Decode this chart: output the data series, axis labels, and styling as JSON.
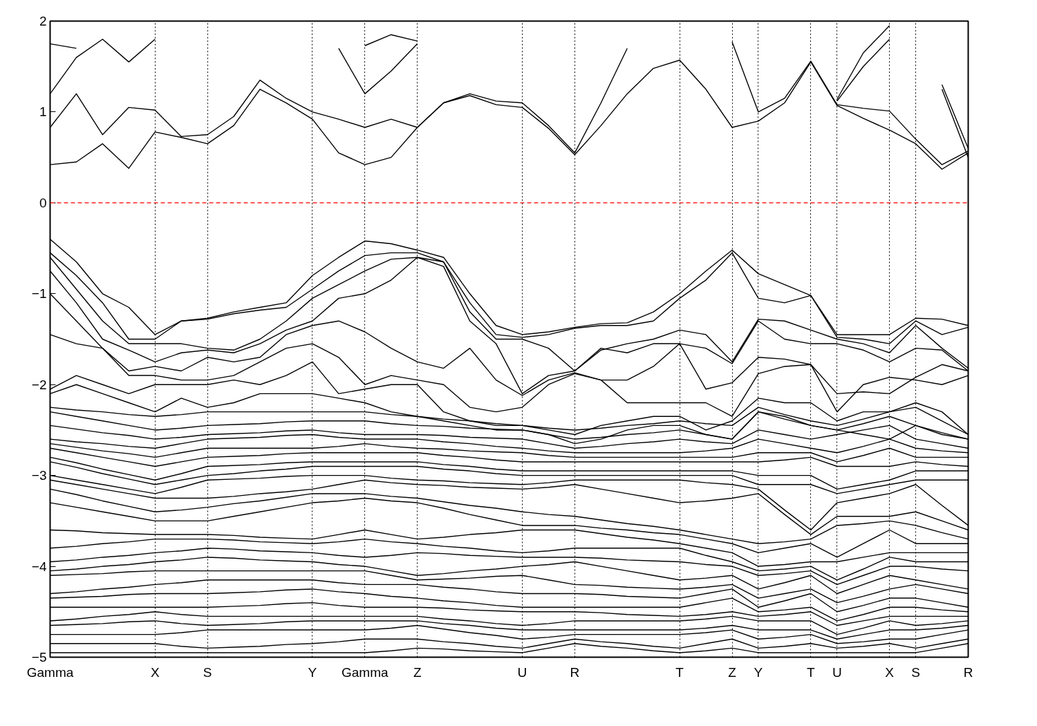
{
  "chart_data": {
    "type": "line",
    "categories": [
      "Gamma",
      null,
      null,
      null,
      "X",
      null,
      "S",
      null,
      null,
      null,
      "Y",
      null,
      "Gamma",
      null,
      "Z",
      null,
      null,
      null,
      "U",
      null,
      "R",
      null,
      null,
      null,
      "T",
      null,
      "Z",
      "Y",
      null,
      "T",
      "U",
      null,
      "X",
      "S",
      null,
      "R"
    ],
    "ylim": [
      -5,
      2
    ],
    "yticks": [
      -5,
      -4,
      -3,
      -2,
      -1,
      0,
      1,
      2
    ],
    "grid": "x",
    "ref_lines": [
      {
        "axis": "y",
        "value": 0,
        "label": null,
        "color": "#ff0000",
        "line_style": "dashed"
      }
    ],
    "series": [
      {
        "color": "#000000",
        "values": [
          0.42,
          0.45,
          0.65,
          0.38,
          0.78,
          0.72,
          0.65,
          0.85,
          1.25,
          1.1,
          0.92,
          0.55,
          0.42,
          0.5,
          0.83,
          1.1,
          1.18,
          1.08,
          1.05,
          0.82,
          0.53,
          0.85,
          1.2,
          1.48,
          1.57,
          1.25,
          0.83,
          0.9,
          1.1,
          1.55,
          1.07,
          0.93,
          0.8,
          0.65,
          0.37,
          0.55
        ]
      },
      {
        "color": "#000000",
        "values": [
          0.83,
          1.2,
          0.75,
          1.05,
          1.02,
          0.73,
          0.75,
          0.95,
          1.35,
          1.15,
          1.0,
          0.92,
          0.83,
          0.92,
          0.83,
          1.1,
          1.2,
          1.12,
          1.1,
          0.85,
          0.55,
          1.1,
          1.7,
          null,
          null,
          null,
          1.77,
          1.0,
          1.15,
          1.56,
          1.08,
          1.04,
          1.01,
          0.7,
          0.42,
          0.57
        ]
      },
      {
        "color": "#000000",
        "values": [
          1.2,
          1.6,
          1.8,
          1.55,
          1.8,
          null,
          null,
          null,
          null,
          null,
          null,
          1.7,
          1.2,
          1.45,
          1.75,
          null,
          null,
          null,
          null,
          null,
          null,
          null,
          null,
          null,
          null,
          null,
          null,
          null,
          null,
          null,
          1.12,
          1.5,
          1.8,
          null,
          1.25,
          0.5
        ]
      },
      {
        "color": "#000000",
        "values": [
          1.75,
          1.7,
          null,
          null,
          null,
          null,
          null,
          null,
          null,
          null,
          null,
          null,
          1.73,
          1.85,
          1.78,
          null,
          null,
          null,
          null,
          null,
          null,
          null,
          null,
          null,
          null,
          null,
          null,
          null,
          null,
          null,
          1.14,
          1.65,
          1.95,
          null,
          1.3,
          0.6
        ]
      },
      {
        "color": "#000000",
        "values": [
          -0.4,
          -0.65,
          -1.0,
          -1.15,
          -1.45,
          -1.3,
          -1.27,
          -1.2,
          -1.15,
          -1.1,
          -0.8,
          -0.6,
          -0.42,
          -0.45,
          -0.52,
          -0.6,
          -1.0,
          -1.35,
          -1.45,
          -1.42,
          -1.37,
          -1.33,
          -1.32,
          -1.2,
          -1.0,
          -0.75,
          -0.52,
          -0.78,
          -0.9,
          -1.02,
          -1.45,
          -1.45,
          -1.45,
          -1.27,
          -1.28,
          -1.35
        ]
      },
      {
        "color": "#000000",
        "values": [
          -0.55,
          -0.8,
          -1.1,
          -1.5,
          -1.5,
          -1.3,
          -1.28,
          -1.22,
          -1.18,
          -1.15,
          -0.95,
          -0.75,
          -0.58,
          -0.55,
          -0.55,
          -0.65,
          -1.1,
          -1.45,
          -1.48,
          -1.45,
          -1.38,
          -1.35,
          -1.35,
          -1.3,
          -1.05,
          -0.85,
          -0.55,
          -1.05,
          -1.1,
          -1.02,
          -1.48,
          -1.5,
          -1.55,
          -1.3,
          -1.45,
          -1.37
        ]
      },
      {
        "color": "#000000",
        "values": [
          -0.6,
          -0.95,
          -1.3,
          -1.55,
          -1.55,
          -1.55,
          -1.6,
          -1.62,
          -1.5,
          -1.3,
          -1.05,
          -0.9,
          -0.75,
          -0.62,
          -0.6,
          -0.65,
          -1.2,
          -1.5,
          -1.5,
          -1.6,
          -1.85,
          -1.62,
          -1.55,
          -1.5,
          -1.4,
          -1.45,
          -1.75,
          -1.28,
          -1.3,
          -1.4,
          -1.5,
          -1.55,
          -1.65,
          -1.35,
          -1.6,
          -1.82
        ]
      },
      {
        "color": "#000000",
        "values": [
          -0.75,
          -1.1,
          -1.5,
          -1.62,
          -1.75,
          -1.65,
          -1.62,
          -1.65,
          -1.55,
          -1.4,
          -1.3,
          -1.05,
          -1.0,
          -0.85,
          -0.6,
          -0.7,
          -1.3,
          -1.55,
          -2.1,
          -1.9,
          -1.85,
          -1.6,
          -1.65,
          -1.55,
          -1.55,
          -1.6,
          -1.77,
          -1.3,
          -1.5,
          -1.55,
          -1.55,
          -1.62,
          -1.75,
          -1.6,
          -1.62,
          -1.85
        ]
      },
      {
        "color": "#000000",
        "values": [
          -1.0,
          -1.3,
          -1.6,
          -1.85,
          -1.8,
          -1.85,
          -1.7,
          -1.75,
          -1.7,
          -1.45,
          -1.35,
          -1.3,
          -1.42,
          -1.6,
          -1.75,
          -1.82,
          -1.6,
          -1.95,
          -2.12,
          -1.95,
          -1.87,
          -1.95,
          -1.95,
          -1.8,
          -1.55,
          -2.05,
          -1.98,
          -1.7,
          -1.72,
          -1.78,
          -2.1,
          -2.08,
          -2.1,
          -1.92,
          -1.78,
          -1.85
        ]
      },
      {
        "color": "#000000",
        "values": [
          -1.45,
          -1.55,
          -1.6,
          -1.9,
          -1.9,
          -1.95,
          -1.95,
          -1.9,
          -1.75,
          -1.6,
          -1.55,
          -1.7,
          -2.0,
          -1.9,
          -1.95,
          -2.0,
          -2.25,
          -2.3,
          -2.25,
          -2.0,
          -1.88,
          -1.95,
          -2.2,
          -2.2,
          -2.2,
          -2.2,
          -2.35,
          -1.88,
          -1.8,
          -1.78,
          -2.3,
          -2.0,
          -1.92,
          -1.95,
          -2.0,
          -1.9
        ]
      },
      {
        "color": "#000000",
        "values": [
          -2.05,
          -1.9,
          -2.0,
          -2.1,
          -2.0,
          -2.0,
          -2.0,
          -1.95,
          -2.0,
          -1.9,
          -1.75,
          -2.1,
          -2.05,
          -2.0,
          -2.0,
          -2.3,
          -2.4,
          -2.45,
          -2.45,
          -2.5,
          -2.55,
          -2.45,
          -2.4,
          -2.35,
          -2.35,
          -2.5,
          -2.4,
          -2.15,
          -2.2,
          -2.2,
          -2.4,
          -2.3,
          -2.3,
          -2.2,
          -2.3,
          -2.55
        ]
      },
      {
        "color": "#000000",
        "values": [
          -2.1,
          -2.0,
          -2.1,
          -2.2,
          -2.3,
          -2.15,
          -2.25,
          -2.2,
          -2.1,
          -2.1,
          -2.1,
          -2.15,
          -2.2,
          -2.3,
          -2.35,
          -2.4,
          -2.45,
          -2.5,
          -2.5,
          -2.55,
          -2.65,
          -2.6,
          -2.5,
          -2.45,
          -2.45,
          -2.55,
          -2.6,
          -2.3,
          -2.35,
          -2.45,
          -2.5,
          -2.55,
          -2.6,
          -2.45,
          -2.55,
          -2.6
        ]
      },
      {
        "color": "#000000",
        "values": [
          -2.25,
          -2.28,
          -2.3,
          -2.33,
          -2.35,
          -2.33,
          -2.3,
          -2.3,
          -2.3,
          -2.3,
          -2.3,
          -2.3,
          -2.3,
          -2.33,
          -2.35,
          -2.38,
          -2.4,
          -2.43,
          -2.45,
          -2.48,
          -2.5,
          -2.48,
          -2.45,
          -2.43,
          -2.4,
          -2.43,
          -2.45,
          -2.25,
          -2.33,
          -2.4,
          -2.45,
          -2.38,
          -2.3,
          -2.25,
          -2.4,
          -2.55
        ]
      },
      {
        "color": "#000000",
        "values": [
          -2.3,
          -2.35,
          -2.4,
          -2.45,
          -2.5,
          -2.48,
          -2.45,
          -2.44,
          -2.43,
          -2.41,
          -2.4,
          -2.4,
          -2.4,
          -2.43,
          -2.45,
          -2.46,
          -2.48,
          -2.49,
          -2.5,
          -2.55,
          -2.6,
          -2.58,
          -2.55,
          -2.53,
          -2.5,
          -2.55,
          -2.6,
          -2.3,
          -2.38,
          -2.45,
          -2.5,
          -2.43,
          -2.35,
          -2.45,
          -2.53,
          -2.6
        ]
      },
      {
        "color": "#000000",
        "values": [
          -2.45,
          -2.49,
          -2.53,
          -2.56,
          -2.6,
          -2.58,
          -2.55,
          -2.54,
          -2.53,
          -2.51,
          -2.5,
          -2.53,
          -2.55,
          -2.55,
          -2.55,
          -2.56,
          -2.58,
          -2.59,
          -2.6,
          -2.65,
          -2.7,
          -2.68,
          -2.65,
          -2.63,
          -2.6,
          -2.63,
          -2.65,
          -2.5,
          -2.55,
          -2.6,
          -2.55,
          -2.5,
          -2.45,
          -2.6,
          -2.65,
          -2.7
        ]
      },
      {
        "color": "#000000",
        "values": [
          -2.6,
          -2.63,
          -2.65,
          -2.68,
          -2.7,
          -2.65,
          -2.6,
          -2.59,
          -2.58,
          -2.56,
          -2.55,
          -2.58,
          -2.6,
          -2.6,
          -2.6,
          -2.63,
          -2.65,
          -2.68,
          -2.7,
          -2.73,
          -2.75,
          -2.75,
          -2.75,
          -2.75,
          -2.75,
          -2.73,
          -2.7,
          -2.6,
          -2.65,
          -2.7,
          -2.75,
          -2.68,
          -2.6,
          -2.7,
          -2.73,
          -2.75
        ]
      },
      {
        "color": "#000000",
        "values": [
          -2.65,
          -2.69,
          -2.73,
          -2.76,
          -2.8,
          -2.75,
          -2.7,
          -2.7,
          -2.7,
          -2.7,
          -2.7,
          -2.68,
          -2.65,
          -2.68,
          -2.7,
          -2.71,
          -2.73,
          -2.74,
          -2.75,
          -2.78,
          -2.8,
          -2.8,
          -2.8,
          -2.8,
          -2.8,
          -2.8,
          -2.8,
          -2.75,
          -2.75,
          -2.75,
          -2.85,
          -2.78,
          -2.7,
          -2.8,
          -2.8,
          -2.8
        ]
      },
      {
        "color": "#000000",
        "values": [
          -2.7,
          -2.75,
          -2.8,
          -2.85,
          -2.9,
          -2.85,
          -2.8,
          -2.79,
          -2.78,
          -2.76,
          -2.75,
          -2.75,
          -2.75,
          -2.75,
          -2.75,
          -2.78,
          -2.8,
          -2.83,
          -2.85,
          -2.85,
          -2.85,
          -2.85,
          -2.85,
          -2.85,
          -2.85,
          -2.85,
          -2.85,
          -2.85,
          -2.83,
          -2.8,
          -2.9,
          -2.9,
          -2.9,
          -2.85,
          -2.88,
          -2.9
        ]
      },
      {
        "color": "#000000",
        "values": [
          -2.8,
          -2.86,
          -2.93,
          -2.99,
          -3.05,
          -2.98,
          -2.9,
          -2.89,
          -2.88,
          -2.86,
          -2.85,
          -2.85,
          -2.85,
          -2.85,
          -2.85,
          -2.88,
          -2.9,
          -2.93,
          -2.95,
          -2.95,
          -2.95,
          -2.95,
          -2.95,
          -2.95,
          -2.95,
          -2.95,
          -2.95,
          -3.0,
          -3.0,
          -3.0,
          -3.15,
          -3.1,
          -3.05,
          -2.95,
          -2.95,
          -2.95
        ]
      },
      {
        "color": "#000000",
        "values": [
          -2.85,
          -2.91,
          -2.98,
          -3.04,
          -3.1,
          -3.05,
          -3.0,
          -2.98,
          -2.95,
          -2.93,
          -2.9,
          -2.9,
          -2.9,
          -2.9,
          -2.9,
          -2.93,
          -2.95,
          -2.98,
          -3.0,
          -3.0,
          -3.0,
          -3.0,
          -3.0,
          -3.0,
          -3.0,
          -3.0,
          -3.0,
          -3.1,
          -3.1,
          -3.1,
          -3.2,
          -3.15,
          -3.1,
          -3.05,
          -3.05,
          -3.05
        ]
      },
      {
        "color": "#000000",
        "values": [
          -3.0,
          -3.05,
          -3.1,
          -3.15,
          -3.2,
          -3.13,
          -3.05,
          -3.04,
          -3.03,
          -3.01,
          -3.0,
          -3.0,
          -3.0,
          -3.03,
          -3.05,
          -3.06,
          -3.08,
          -3.09,
          -3.1,
          -3.08,
          -3.05,
          -3.05,
          -3.05,
          -3.05,
          -3.05,
          -3.08,
          -3.1,
          -3.15,
          -3.38,
          -3.6,
          -3.3,
          -3.25,
          -3.2,
          -3.1,
          -3.33,
          -3.55
        ]
      },
      {
        "color": "#000000",
        "values": [
          -3.05,
          -3.1,
          -3.15,
          -3.2,
          -3.25,
          -3.25,
          -3.25,
          -3.23,
          -3.2,
          -3.18,
          -3.15,
          -3.1,
          -3.05,
          -3.08,
          -3.1,
          -3.11,
          -3.13,
          -3.14,
          -3.15,
          -3.13,
          -3.1,
          -3.15,
          -3.2,
          -3.25,
          -3.3,
          -3.28,
          -3.25,
          -3.2,
          -3.43,
          -3.65,
          -3.45,
          -3.45,
          -3.45,
          -3.4,
          -3.5,
          -3.6
        ]
      },
      {
        "color": "#000000",
        "values": [
          -3.15,
          -3.21,
          -3.28,
          -3.34,
          -3.4,
          -3.38,
          -3.35,
          -3.31,
          -3.28,
          -3.24,
          -3.2,
          -3.2,
          -3.2,
          -3.23,
          -3.25,
          -3.29,
          -3.33,
          -3.36,
          -3.4,
          -3.43,
          -3.45,
          -3.49,
          -3.53,
          -3.56,
          -3.6,
          -3.65,
          -3.7,
          -3.75,
          -3.73,
          -3.7,
          -3.55,
          -3.53,
          -3.5,
          -3.55,
          -3.63,
          -3.7
        ]
      },
      {
        "color": "#000000",
        "values": [
          -3.3,
          -3.35,
          -3.4,
          -3.45,
          -3.5,
          -3.5,
          -3.5,
          -3.45,
          -3.4,
          -3.35,
          -3.3,
          -3.28,
          -3.25,
          -3.28,
          -3.3,
          -3.36,
          -3.43,
          -3.49,
          -3.55,
          -3.55,
          -3.55,
          -3.58,
          -3.6,
          -3.63,
          -3.65,
          -3.7,
          -3.75,
          -3.85,
          -3.8,
          -3.75,
          -3.9,
          -3.75,
          -3.6,
          -3.75,
          -3.75,
          -3.75
        ]
      },
      {
        "color": "#000000",
        "values": [
          -3.6,
          -3.61,
          -3.63,
          -3.64,
          -3.65,
          -3.65,
          -3.65,
          -3.66,
          -3.68,
          -3.69,
          -3.7,
          -3.65,
          -3.6,
          -3.65,
          -3.7,
          -3.68,
          -3.65,
          -3.63,
          -3.6,
          -3.6,
          -3.6,
          -3.64,
          -3.68,
          -3.71,
          -3.75,
          -3.8,
          -3.85,
          -4.0,
          -3.98,
          -3.95,
          -3.95,
          -3.9,
          -3.85,
          -3.85,
          -3.85,
          -3.85
        ]
      },
      {
        "color": "#000000",
        "values": [
          -3.8,
          -3.78,
          -3.75,
          -3.73,
          -3.7,
          -3.7,
          -3.7,
          -3.71,
          -3.73,
          -3.74,
          -3.75,
          -3.73,
          -3.7,
          -3.73,
          -3.75,
          -3.78,
          -3.8,
          -3.83,
          -3.85,
          -3.83,
          -3.8,
          -3.8,
          -3.8,
          -3.8,
          -3.8,
          -3.88,
          -3.95,
          -4.05,
          -4.03,
          -4.0,
          -4.15,
          -4.03,
          -3.9,
          -3.95,
          -3.95,
          -3.95
        ]
      },
      {
        "color": "#000000",
        "values": [
          -3.95,
          -3.93,
          -3.9,
          -3.88,
          -3.85,
          -3.83,
          -3.8,
          -3.81,
          -3.83,
          -3.84,
          -3.85,
          -3.88,
          -3.9,
          -3.88,
          -3.85,
          -3.86,
          -3.88,
          -3.89,
          -3.9,
          -3.9,
          -3.9,
          -3.91,
          -3.93,
          -3.94,
          -3.95,
          -3.98,
          -4.0,
          -4.1,
          -4.08,
          -4.05,
          -4.2,
          -4.1,
          -4.0,
          -4.0,
          -4.03,
          -4.05
        ]
      },
      {
        "color": "#000000",
        "values": [
          -4.05,
          -4.03,
          -4.0,
          -3.98,
          -3.95,
          -3.93,
          -3.9,
          -3.91,
          -3.93,
          -3.94,
          -3.95,
          -3.98,
          -4.0,
          -4.05,
          -4.1,
          -4.08,
          -4.05,
          -4.03,
          -4.0,
          -3.98,
          -3.95,
          -4.0,
          -4.05,
          -4.1,
          -4.15,
          -4.13,
          -4.1,
          -4.25,
          -4.18,
          -4.1,
          -4.3,
          -4.2,
          -4.1,
          -4.15,
          -4.2,
          -4.25
        ]
      },
      {
        "color": "#000000",
        "values": [
          -4.1,
          -4.09,
          -4.08,
          -4.06,
          -4.05,
          -4.05,
          -4.05,
          -4.05,
          -4.05,
          -4.05,
          -4.05,
          -4.05,
          -4.05,
          -4.1,
          -4.15,
          -4.14,
          -4.13,
          -4.11,
          -4.1,
          -4.15,
          -4.2,
          -4.21,
          -4.23,
          -4.24,
          -4.25,
          -4.23,
          -4.2,
          -4.35,
          -4.3,
          -4.25,
          -4.4,
          -4.33,
          -4.25,
          -4.2,
          -4.25,
          -4.3
        ]
      },
      {
        "color": "#000000",
        "values": [
          -4.3,
          -4.28,
          -4.25,
          -4.23,
          -4.2,
          -4.18,
          -4.15,
          -4.15,
          -4.15,
          -4.15,
          -4.15,
          -4.18,
          -4.2,
          -4.2,
          -4.2,
          -4.23,
          -4.25,
          -4.28,
          -4.3,
          -4.3,
          -4.3,
          -4.31,
          -4.33,
          -4.34,
          -4.35,
          -4.3,
          -4.25,
          -4.45,
          -4.38,
          -4.3,
          -4.5,
          -4.43,
          -4.35,
          -4.35,
          -4.4,
          -4.45
        ]
      },
      {
        "color": "#000000",
        "values": [
          -4.35,
          -4.34,
          -4.33,
          -4.31,
          -4.3,
          -4.3,
          -4.3,
          -4.29,
          -4.28,
          -4.26,
          -4.25,
          -4.28,
          -4.3,
          -4.33,
          -4.35,
          -4.38,
          -4.4,
          -4.43,
          -4.45,
          -4.45,
          -4.45,
          -4.45,
          -4.45,
          -4.45,
          -4.45,
          -4.4,
          -4.35,
          -4.5,
          -4.48,
          -4.45,
          -4.6,
          -4.53,
          -4.45,
          -4.45,
          -4.48,
          -4.5
        ]
      },
      {
        "color": "#000000",
        "values": [
          -4.45,
          -4.45,
          -4.45,
          -4.45,
          -4.45,
          -4.45,
          -4.45,
          -4.44,
          -4.43,
          -4.41,
          -4.4,
          -4.43,
          -4.45,
          -4.45,
          -4.45,
          -4.46,
          -4.48,
          -4.49,
          -4.5,
          -4.5,
          -4.5,
          -4.51,
          -4.53,
          -4.54,
          -4.55,
          -4.53,
          -4.5,
          -4.55,
          -4.53,
          -4.5,
          -4.65,
          -4.6,
          -4.55,
          -4.55,
          -4.55,
          -4.55
        ]
      },
      {
        "color": "#000000",
        "values": [
          -4.6,
          -4.58,
          -4.55,
          -4.53,
          -4.5,
          -4.53,
          -4.55,
          -4.55,
          -4.55,
          -4.55,
          -4.55,
          -4.55,
          -4.55,
          -4.55,
          -4.55,
          -4.58,
          -4.6,
          -4.63,
          -4.65,
          -4.63,
          -4.6,
          -4.6,
          -4.6,
          -4.6,
          -4.6,
          -4.58,
          -4.55,
          -4.6,
          -4.6,
          -4.6,
          -4.75,
          -4.68,
          -4.6,
          -4.65,
          -4.63,
          -4.6
        ]
      },
      {
        "color": "#000000",
        "values": [
          -4.65,
          -4.64,
          -4.63,
          -4.61,
          -4.6,
          -4.63,
          -4.65,
          -4.64,
          -4.63,
          -4.61,
          -4.6,
          -4.6,
          -4.6,
          -4.6,
          -4.6,
          -4.63,
          -4.65,
          -4.68,
          -4.7,
          -4.7,
          -4.7,
          -4.7,
          -4.7,
          -4.7,
          -4.7,
          -4.68,
          -4.65,
          -4.7,
          -4.7,
          -4.7,
          -4.8,
          -4.75,
          -4.7,
          -4.7,
          -4.68,
          -4.65
        ]
      },
      {
        "color": "#000000",
        "values": [
          -4.75,
          -4.75,
          -4.75,
          -4.75,
          -4.75,
          -4.73,
          -4.7,
          -4.7,
          -4.7,
          -4.7,
          -4.7,
          -4.7,
          -4.7,
          -4.68,
          -4.65,
          -4.69,
          -4.73,
          -4.76,
          -4.8,
          -4.78,
          -4.75,
          -4.75,
          -4.75,
          -4.75,
          -4.75,
          -4.73,
          -4.7,
          -4.8,
          -4.78,
          -4.75,
          -4.85,
          -4.83,
          -4.8,
          -4.8,
          -4.75,
          -4.7
        ]
      },
      {
        "color": "#000000",
        "values": [
          -4.85,
          -4.85,
          -4.85,
          -4.85,
          -4.85,
          -4.88,
          -4.9,
          -4.89,
          -4.88,
          -4.86,
          -4.85,
          -4.83,
          -4.8,
          -4.8,
          -4.8,
          -4.83,
          -4.85,
          -4.88,
          -4.9,
          -4.85,
          -4.8,
          -4.83,
          -4.85,
          -4.88,
          -4.9,
          -4.85,
          -4.8,
          -4.9,
          -4.88,
          -4.85,
          -4.9,
          -4.88,
          -4.85,
          -4.9,
          -4.85,
          -4.8
        ]
      },
      {
        "color": "#000000",
        "values": [
          -4.95,
          -4.95,
          -4.95,
          -4.95,
          -4.95,
          -4.95,
          -4.95,
          -4.95,
          -4.95,
          -4.95,
          -4.95,
          -4.95,
          -4.95,
          -4.93,
          -4.9,
          -4.91,
          -4.93,
          -4.94,
          -4.95,
          -4.9,
          -4.85,
          -4.88,
          -4.9,
          -4.93,
          -4.95,
          -4.93,
          -4.9,
          -4.95,
          -4.95,
          -4.95,
          -4.95,
          -4.95,
          -4.95,
          -4.95,
          -4.9,
          -4.85
        ]
      }
    ]
  }
}
